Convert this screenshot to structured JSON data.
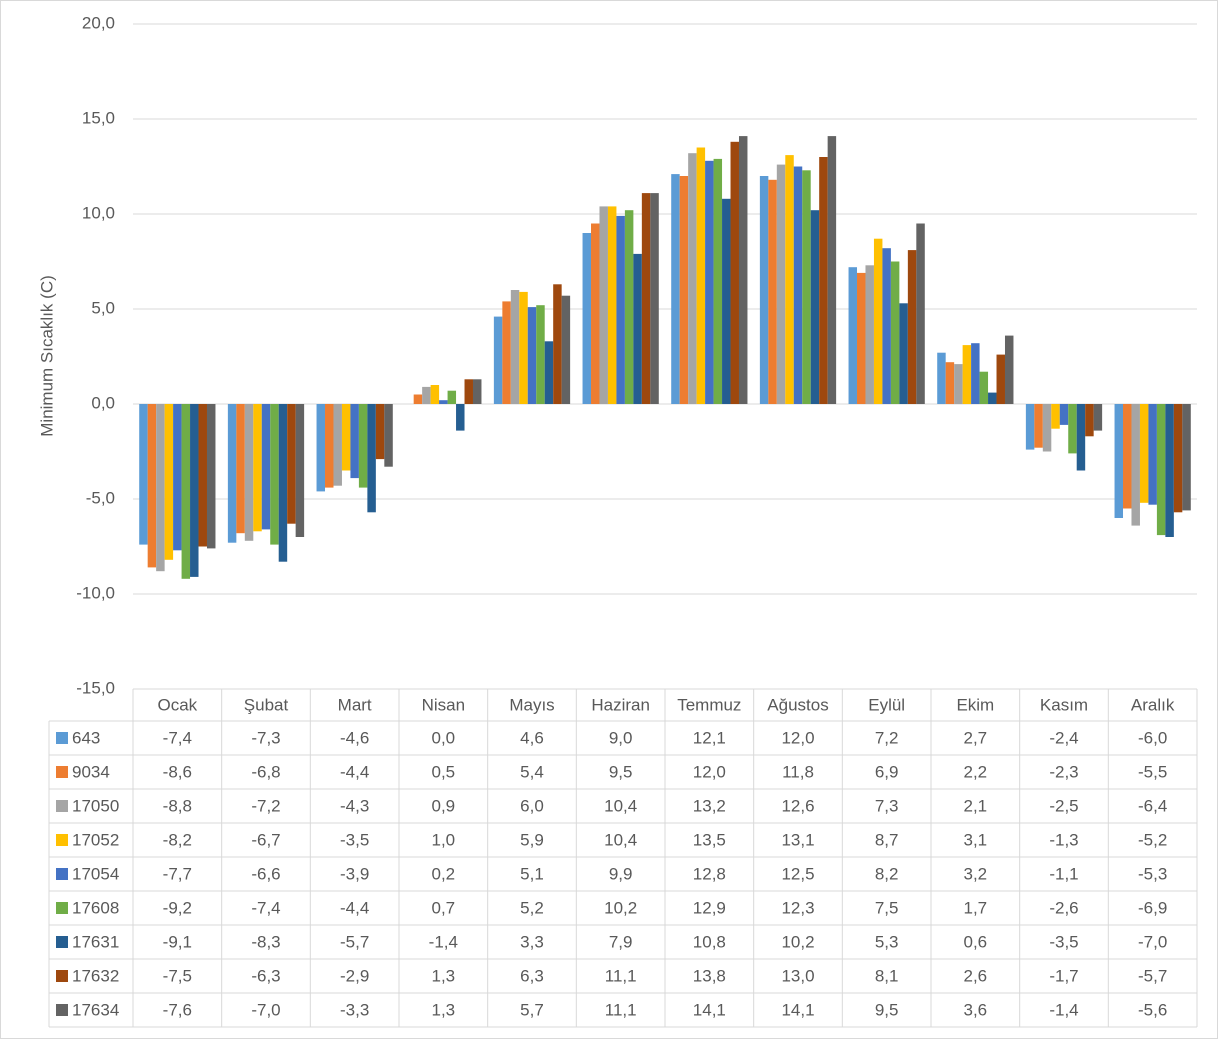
{
  "chart_data": {
    "type": "bar",
    "y_label": "Minimum Sıcaklık (C)",
    "categories": [
      "Ocak",
      "Şubat",
      "Mart",
      "Nisan",
      "Mayıs",
      "Haziran",
      "Temmuz",
      "Ağustos",
      "Eylül",
      "Ekim",
      "Kasım",
      "Aralık"
    ],
    "ylim": [
      -15,
      20
    ],
    "yticks": [
      {
        "value": -15,
        "label": "-15,0"
      },
      {
        "value": -10,
        "label": "-10,0"
      },
      {
        "value": -5,
        "label": "-5,0"
      },
      {
        "value": 0,
        "label": "0,0"
      },
      {
        "value": 5,
        "label": "5,0"
      },
      {
        "value": 10,
        "label": "10,0"
      },
      {
        "value": 15,
        "label": "15,0"
      },
      {
        "value": 20,
        "label": "20,0"
      }
    ],
    "grid": true,
    "legend": "table",
    "series": [
      {
        "name": "643",
        "color": "#5b9bd5",
        "values": [
          -7.4,
          -7.3,
          -4.6,
          0.0,
          4.6,
          9.0,
          12.1,
          12.0,
          7.2,
          2.7,
          -2.4,
          -6.0
        ],
        "value_labels": [
          "-7,4",
          "-7,3",
          "-4,6",
          "0,0",
          "4,6",
          "9,0",
          "12,1",
          "12,0",
          "7,2",
          "2,7",
          "-2,4",
          "-6,0"
        ]
      },
      {
        "name": "9034",
        "color": "#ed7d31",
        "values": [
          -8.6,
          -6.8,
          -4.4,
          0.5,
          5.4,
          9.5,
          12.0,
          11.8,
          6.9,
          2.2,
          -2.3,
          -5.5
        ],
        "value_labels": [
          "-8,6",
          "-6,8",
          "-4,4",
          "0,5",
          "5,4",
          "9,5",
          "12,0",
          "11,8",
          "6,9",
          "2,2",
          "-2,3",
          "-5,5"
        ]
      },
      {
        "name": "17050",
        "color": "#a5a5a5",
        "values": [
          -8.8,
          -7.2,
          -4.3,
          0.9,
          6.0,
          10.4,
          13.2,
          12.6,
          7.3,
          2.1,
          -2.5,
          -6.4
        ],
        "value_labels": [
          "-8,8",
          "-7,2",
          "-4,3",
          "0,9",
          "6,0",
          "10,4",
          "13,2",
          "12,6",
          "7,3",
          "2,1",
          "-2,5",
          "-6,4"
        ]
      },
      {
        "name": "17052",
        "color": "#ffc000",
        "values": [
          -8.2,
          -6.7,
          -3.5,
          1.0,
          5.9,
          10.4,
          13.5,
          13.1,
          8.7,
          3.1,
          -1.3,
          -5.2
        ],
        "value_labels": [
          "-8,2",
          "-6,7",
          "-3,5",
          "1,0",
          "5,9",
          "10,4",
          "13,5",
          "13,1",
          "8,7",
          "3,1",
          "-1,3",
          "-5,2"
        ]
      },
      {
        "name": "17054",
        "color": "#4472c4",
        "values": [
          -7.7,
          -6.6,
          -3.9,
          0.2,
          5.1,
          9.9,
          12.8,
          12.5,
          8.2,
          3.2,
          -1.1,
          -5.3
        ],
        "value_labels": [
          "-7,7",
          "-6,6",
          "-3,9",
          "0,2",
          "5,1",
          "9,9",
          "12,8",
          "12,5",
          "8,2",
          "3,2",
          "-1,1",
          "-5,3"
        ]
      },
      {
        "name": "17608",
        "color": "#70ad47",
        "values": [
          -9.2,
          -7.4,
          -4.4,
          0.7,
          5.2,
          10.2,
          12.9,
          12.3,
          7.5,
          1.7,
          -2.6,
          -6.9
        ],
        "value_labels": [
          "-9,2",
          "-7,4",
          "-4,4",
          "0,7",
          "5,2",
          "10,2",
          "12,9",
          "12,3",
          "7,5",
          "1,7",
          "-2,6",
          "-6,9"
        ]
      },
      {
        "name": "17631",
        "color": "#255e91",
        "values": [
          -9.1,
          -8.3,
          -5.7,
          -1.4,
          3.3,
          7.9,
          10.8,
          10.2,
          5.3,
          0.6,
          -3.5,
          -7.0
        ],
        "value_labels": [
          "-9,1",
          "-8,3",
          "-5,7",
          "-1,4",
          "3,3",
          "7,9",
          "10,8",
          "10,2",
          "5,3",
          "0,6",
          "-3,5",
          "-7,0"
        ]
      },
      {
        "name": "17632",
        "color": "#9e480e",
        "values": [
          -7.5,
          -6.3,
          -2.9,
          1.3,
          6.3,
          11.1,
          13.8,
          13.0,
          8.1,
          2.6,
          -1.7,
          -5.7
        ],
        "value_labels": [
          "-7,5",
          "-6,3",
          "-2,9",
          "1,3",
          "6,3",
          "11,1",
          "13,8",
          "13,0",
          "8,1",
          "2,6",
          "-1,7",
          "-5,7"
        ]
      },
      {
        "name": "17634",
        "color": "#636363",
        "values": [
          -7.6,
          -7.0,
          -3.3,
          1.3,
          5.7,
          11.1,
          14.1,
          14.1,
          9.5,
          3.6,
          -1.4,
          -5.6
        ],
        "value_labels": [
          "-7,6",
          "-7,0",
          "-3,3",
          "1,3",
          "5,7",
          "11,1",
          "14,1",
          "14,1",
          "9,5",
          "3,6",
          "-1,4",
          "-5,6"
        ]
      }
    ]
  }
}
